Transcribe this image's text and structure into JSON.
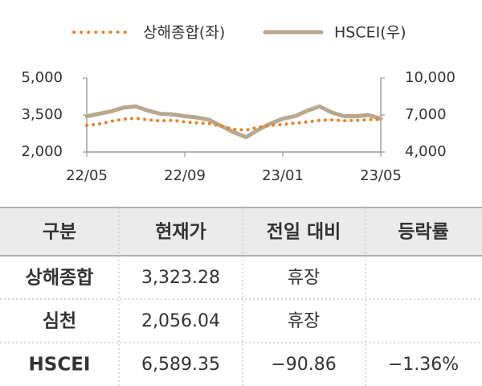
{
  "chart_data": {
    "type": "line",
    "categories": [
      "22/05",
      null,
      null,
      null,
      null,
      null,
      null,
      null,
      "22/09",
      null,
      null,
      null,
      null,
      null,
      null,
      null,
      "23/01",
      null,
      null,
      null,
      null,
      null,
      null,
      null,
      "23/05"
    ],
    "series": [
      {
        "name": "상해종합(좌)",
        "color": "#e8832e",
        "line_style": "dotted",
        "axis": "y",
        "values": [
          3080,
          3130,
          3250,
          3330,
          3370,
          3300,
          3260,
          3280,
          3220,
          3180,
          3150,
          3050,
          2920,
          2890,
          3000,
          3080,
          3120,
          3170,
          3220,
          3280,
          3300,
          3270,
          3280,
          3310,
          3320
        ]
      },
      {
        "name": "HSCEI(우)",
        "color": "#b8a88e",
        "line_style": "solid",
        "axis": "y2",
        "values": [
          6900,
          7100,
          7300,
          7600,
          7700,
          7350,
          7100,
          7050,
          6900,
          6800,
          6600,
          6100,
          5600,
          5200,
          5800,
          6300,
          6700,
          6900,
          7350,
          7700,
          7200,
          6900,
          6900,
          7000,
          6700
        ]
      }
    ],
    "ylim": [
      2000,
      5000
    ],
    "yticks": [
      {
        "value": 2000,
        "label": "2,000"
      },
      {
        "value": 3500,
        "label": "3,500"
      },
      {
        "value": 5000,
        "label": "5,000"
      }
    ],
    "y2lim": [
      4000,
      10000
    ],
    "y2ticks": [
      {
        "value": 4000,
        "label": "4,000"
      },
      {
        "value": 7000,
        "label": "7,000"
      },
      {
        "value": 10000,
        "label": "10,000"
      }
    ],
    "legend": "top"
  },
  "table": {
    "header": [
      "구분",
      "현재가",
      "전일 대비",
      "등락률"
    ],
    "rows": [
      [
        "상해종합",
        "3,323.28",
        "휴장",
        null
      ],
      [
        "심천",
        "2,056.04",
        "휴장",
        null
      ],
      [
        "HSCEI",
        "6,589.35",
        "−90.86",
        "−1.36%"
      ]
    ]
  }
}
